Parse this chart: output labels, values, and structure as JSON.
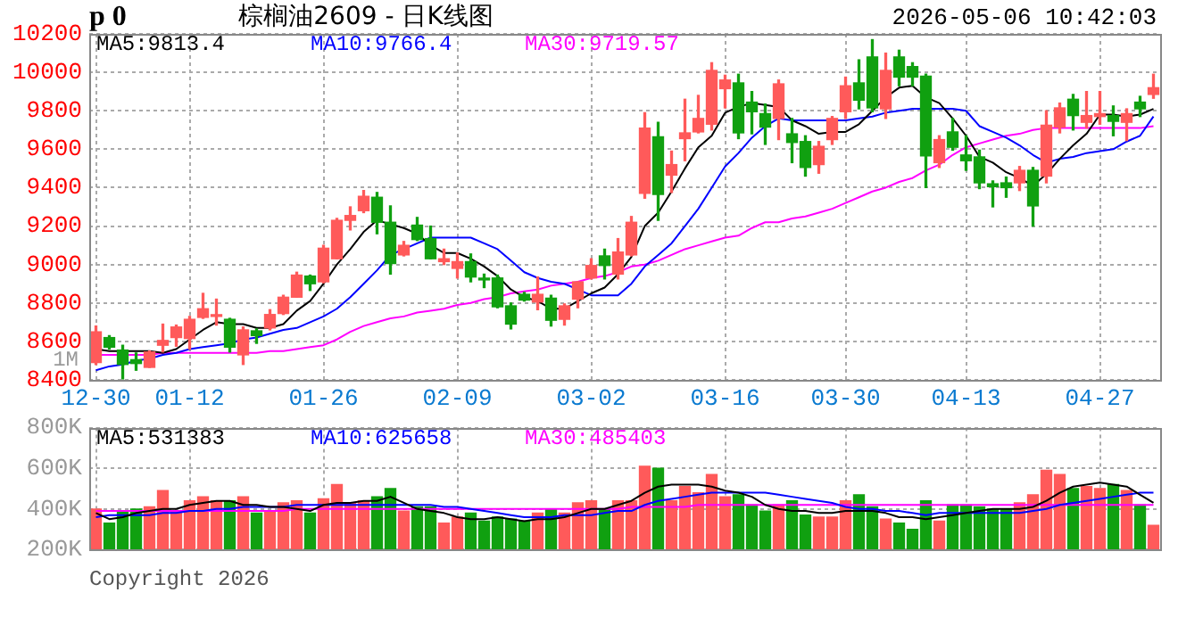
{
  "chart_data": [
    {
      "type": "candlestick",
      "title": "棕榈油2609 - 日K线图",
      "annotations": [
        "p 0",
        "2026-05-06 10:42:03",
        "1M"
      ],
      "categories": [
        "12-30",
        null,
        null,
        null,
        null,
        null,
        null,
        "01-12",
        null,
        null,
        null,
        null,
        null,
        null,
        null,
        null,
        null,
        "01-26",
        null,
        null,
        null,
        null,
        null,
        null,
        null,
        null,
        null,
        "02-09",
        null,
        null,
        null,
        null,
        null,
        null,
        null,
        null,
        null,
        "03-02",
        null,
        null,
        null,
        null,
        null,
        null,
        null,
        null,
        null,
        "03-16",
        null,
        null,
        null,
        null,
        null,
        null,
        null,
        null,
        "03-30",
        null,
        null,
        null,
        null,
        null,
        null,
        null,
        null,
        "04-13",
        null,
        null,
        null,
        null,
        null,
        null,
        null,
        null,
        null,
        "04-27",
        null,
        null,
        null,
        null
      ],
      "ohlc": [
        [
          8490,
          8680,
          8480,
          8650
        ],
        [
          8620,
          8630,
          8560,
          8570
        ],
        [
          8555,
          8580,
          8405,
          8480
        ],
        [
          8505,
          8540,
          8450,
          8485
        ],
        [
          8465,
          8550,
          8465,
          8545
        ],
        [
          8580,
          8690,
          8545,
          8605
        ],
        [
          8620,
          8685,
          8575,
          8675
        ],
        [
          8615,
          8730,
          8560,
          8715
        ],
        [
          8725,
          8850,
          8720,
          8770
        ],
        [
          8730,
          8820,
          8685,
          8735
        ],
        [
          8715,
          8720,
          8545,
          8570
        ],
        [
          8530,
          8675,
          8480,
          8660
        ],
        [
          8655,
          8665,
          8590,
          8630
        ],
        [
          8670,
          8765,
          8660,
          8740
        ],
        [
          8745,
          8840,
          8740,
          8830
        ],
        [
          8830,
          8960,
          8830,
          8945
        ],
        [
          8940,
          8945,
          8865,
          8900
        ],
        [
          8910,
          9100,
          8905,
          9085
        ],
        [
          9030,
          9240,
          9030,
          9230
        ],
        [
          9230,
          9300,
          9180,
          9255
        ],
        [
          9280,
          9385,
          9270,
          9355
        ],
        [
          9350,
          9375,
          9160,
          9220
        ],
        [
          9220,
          9305,
          8950,
          9005
        ],
        [
          9050,
          9120,
          9045,
          9100
        ],
        [
          9205,
          9245,
          9125,
          9130
        ],
        [
          9135,
          9200,
          9030,
          9030
        ],
        [
          9015,
          9080,
          9000,
          9030
        ],
        [
          8980,
          9060,
          8930,
          9015
        ],
        [
          9015,
          9055,
          8910,
          8935
        ],
        [
          8925,
          8950,
          8880,
          8920
        ],
        [
          8930,
          8945,
          8775,
          8780
        ],
        [
          8785,
          8800,
          8665,
          8690
        ],
        [
          8845,
          8855,
          8810,
          8815
        ],
        [
          8805,
          8935,
          8765,
          8845
        ],
        [
          8825,
          8840,
          8680,
          8710
        ],
        [
          8715,
          8795,
          8685,
          8785
        ],
        [
          8820,
          8910,
          8775,
          8910
        ],
        [
          8930,
          9030,
          8925,
          8995
        ],
        [
          9045,
          9080,
          8925,
          8995
        ],
        [
          8950,
          9135,
          8925,
          9065
        ],
        [
          9050,
          9250,
          9045,
          9220
        ],
        [
          9370,
          9790,
          9345,
          9710
        ],
        [
          9665,
          9740,
          9230,
          9365
        ],
        [
          9465,
          9590,
          9375,
          9520
        ],
        [
          9655,
          9860,
          9540,
          9685
        ],
        [
          9690,
          9880,
          9685,
          9760
        ],
        [
          9730,
          10050,
          9700,
          10010
        ],
        [
          9915,
          9985,
          9815,
          9960
        ],
        [
          9945,
          9990,
          9655,
          9685
        ],
        [
          9845,
          9900,
          9680,
          9795
        ],
        [
          9785,
          9835,
          9625,
          9715
        ],
        [
          9760,
          9960,
          9650,
          9940
        ],
        [
          9680,
          9760,
          9530,
          9635
        ],
        [
          9640,
          9670,
          9460,
          9505
        ],
        [
          9520,
          9640,
          9475,
          9615
        ],
        [
          9650,
          9770,
          9625,
          9760
        ],
        [
          9795,
          9975,
          9760,
          9930
        ],
        [
          9945,
          10065,
          9810,
          9855
        ],
        [
          10080,
          10170,
          9795,
          9815
        ],
        [
          9810,
          10100,
          9760,
          10010
        ],
        [
          10080,
          10115,
          9930,
          9975
        ],
        [
          10030,
          10050,
          9930,
          9975
        ],
        [
          9980,
          9990,
          9400,
          9565
        ],
        [
          9530,
          9670,
          9505,
          9650
        ],
        [
          9690,
          9760,
          9595,
          9610
        ],
        [
          9570,
          9670,
          9490,
          9540
        ],
        [
          9560,
          9595,
          9395,
          9425
        ],
        [
          9420,
          9435,
          9300,
          9405
        ],
        [
          9425,
          9455,
          9350,
          9400
        ],
        [
          9425,
          9510,
          9385,
          9490
        ],
        [
          9490,
          9505,
          9200,
          9305
        ],
        [
          9460,
          9800,
          9425,
          9725
        ],
        [
          9715,
          9840,
          9685,
          9815
        ],
        [
          9860,
          9885,
          9700,
          9775
        ],
        [
          9740,
          9900,
          9710,
          9775
        ],
        [
          9770,
          9900,
          9730,
          9785
        ],
        [
          9775,
          9825,
          9670,
          9745
        ],
        [
          9740,
          9810,
          9645,
          9785
        ],
        [
          9845,
          9875,
          9770,
          9810
        ],
        [
          9885,
          9990,
          9865,
          9920
        ]
      ],
      "colors": [
        "#ff5a5a",
        "#10a010",
        "#10a010",
        "#10a010",
        "#ff5a5a",
        "#ff5a5a",
        "#ff5a5a",
        "#ff5a5a",
        "#ff5a5a",
        "#ff5a5a",
        "#10a010",
        "#ff5a5a",
        "#10a010",
        "#ff5a5a",
        "#ff5a5a",
        "#ff5a5a",
        "#10a010",
        "#ff5a5a",
        "#ff5a5a",
        "#ff5a5a",
        "#ff5a5a",
        "#10a010",
        "#10a010",
        "#ff5a5a",
        "#10a010",
        "#10a010",
        "#ff5a5a",
        "#ff5a5a",
        "#10a010",
        "#10a010",
        "#10a010",
        "#10a010",
        "#10a010",
        "#ff5a5a",
        "#10a010",
        "#ff5a5a",
        "#ff5a5a",
        "#ff5a5a",
        "#10a010",
        "#ff5a5a",
        "#ff5a5a",
        "#ff5a5a",
        "#10a010",
        "#ff5a5a",
        "#ff5a5a",
        "#ff5a5a",
        "#ff5a5a",
        "#ff5a5a",
        "#10a010",
        "#10a010",
        "#10a010",
        "#ff5a5a",
        "#10a010",
        "#10a010",
        "#ff5a5a",
        "#ff5a5a",
        "#ff5a5a",
        "#10a010",
        "#10a010",
        "#ff5a5a",
        "#10a010",
        "#10a010",
        "#10a010",
        "#ff5a5a",
        "#10a010",
        "#10a010",
        "#10a010",
        "#10a010",
        "#10a010",
        "#ff5a5a",
        "#10a010",
        "#ff5a5a",
        "#ff5a5a",
        "#10a010",
        "#ff5a5a",
        "#ff5a5a",
        "#10a010",
        "#ff5a5a",
        "#10a010",
        "#ff5a5a"
      ],
      "series": [
        {
          "name": "MA5:9813.4",
          "type": "line",
          "color": "#000000",
          "values": [
            8560,
            8550,
            8550,
            8550,
            8550,
            8540,
            8560,
            8610,
            8660,
            8700,
            8690,
            8690,
            8670,
            8670,
            8690,
            8760,
            8810,
            8900,
            9000,
            9080,
            9170,
            9230,
            9210,
            9190,
            9160,
            9100,
            9060,
            9060,
            9030,
            8990,
            8940,
            8870,
            8830,
            8810,
            8770,
            8770,
            8810,
            8850,
            8880,
            8950,
            9040,
            9200,
            9270,
            9380,
            9500,
            9610,
            9670,
            9790,
            9820,
            9840,
            9830,
            9820,
            9750,
            9720,
            9680,
            9690,
            9690,
            9730,
            9800,
            9870,
            9920,
            9930,
            9870,
            9840,
            9760,
            9670,
            9560,
            9530,
            9480,
            9450,
            9410,
            9470,
            9550,
            9620,
            9680,
            9780,
            9780,
            9770,
            9780,
            9810
          ]
        },
        {
          "name": "MA10:9766.4",
          "type": "line",
          "color": "#0000ff",
          "values": [
            8450,
            8470,
            8480,
            8500,
            8510,
            8530,
            8540,
            8560,
            8570,
            8580,
            8590,
            8610,
            8620,
            8640,
            8660,
            8670,
            8700,
            8730,
            8770,
            8830,
            8900,
            8970,
            9050,
            9080,
            9110,
            9140,
            9140,
            9140,
            9140,
            9110,
            9080,
            9020,
            8960,
            8930,
            8910,
            8900,
            8870,
            8840,
            8840,
            8840,
            8900,
            8990,
            9050,
            9110,
            9200,
            9290,
            9400,
            9510,
            9580,
            9660,
            9720,
            9760,
            9750,
            9750,
            9750,
            9750,
            9750,
            9760,
            9770,
            9790,
            9800,
            9810,
            9810,
            9810,
            9810,
            9800,
            9720,
            9690,
            9660,
            9620,
            9570,
            9530,
            9550,
            9560,
            9580,
            9590,
            9600,
            9640,
            9670,
            9770
          ]
        },
        {
          "name": "MA30:9719.57",
          "type": "line",
          "color": "#ff00ff",
          "values": [
            8530,
            8530,
            8530,
            8530,
            8530,
            8540,
            8540,
            8540,
            8540,
            8540,
            8540,
            8540,
            8540,
            8550,
            8550,
            8560,
            8570,
            8580,
            8610,
            8650,
            8680,
            8700,
            8720,
            8730,
            8750,
            8760,
            8770,
            8790,
            8800,
            8820,
            8830,
            8850,
            8860,
            8870,
            8890,
            8900,
            8910,
            8930,
            8940,
            8960,
            8990,
            9000,
            9020,
            9050,
            9080,
            9100,
            9120,
            9140,
            9150,
            9190,
            9220,
            9220,
            9240,
            9250,
            9270,
            9290,
            9320,
            9350,
            9380,
            9400,
            9430,
            9450,
            9490,
            9520,
            9570,
            9610,
            9630,
            9650,
            9670,
            9680,
            9700,
            9710,
            9710,
            9710,
            9710,
            9710,
            9710,
            9710,
            9710,
            9720
          ]
        }
      ],
      "ylim": [
        8400,
        10200
      ],
      "yticks": [
        8400,
        8600,
        8800,
        9000,
        9200,
        9400,
        9600,
        9800,
        10000,
        10200
      ],
      "grid": true,
      "legend": "top left"
    },
    {
      "type": "bar",
      "annotations": [
        "Copyright 2026"
      ],
      "series": [
        {
          "type": "bar",
          "colors": [
            "#ff5a5a",
            "#10a010",
            "#10a010",
            "#10a010",
            "#ff5a5a",
            "#ff5a5a",
            "#ff5a5a",
            "#ff5a5a",
            "#ff5a5a",
            "#ff5a5a",
            "#10a010",
            "#ff5a5a",
            "#10a010",
            "#ff5a5a",
            "#ff5a5a",
            "#ff5a5a",
            "#10a010",
            "#ff5a5a",
            "#ff5a5a",
            "#ff5a5a",
            "#ff5a5a",
            "#10a010",
            "#10a010",
            "#ff5a5a",
            "#10a010",
            "#10a010",
            "#ff5a5a",
            "#ff5a5a",
            "#10a010",
            "#10a010",
            "#10a010",
            "#10a010",
            "#10a010",
            "#ff5a5a",
            "#10a010",
            "#ff5a5a",
            "#ff5a5a",
            "#ff5a5a",
            "#10a010",
            "#ff5a5a",
            "#ff5a5a",
            "#ff5a5a",
            "#10a010",
            "#ff5a5a",
            "#ff5a5a",
            "#ff5a5a",
            "#ff5a5a",
            "#ff5a5a",
            "#10a010",
            "#10a010",
            "#10a010",
            "#ff5a5a",
            "#10a010",
            "#10a010",
            "#ff5a5a",
            "#ff5a5a",
            "#ff5a5a",
            "#10a010",
            "#10a010",
            "#ff5a5a",
            "#10a010",
            "#10a010",
            "#10a010",
            "#ff5a5a",
            "#10a010",
            "#10a010",
            "#10a010",
            "#10a010",
            "#10a010",
            "#ff5a5a",
            "#ff5a5a",
            "#ff5a5a",
            "#ff5a5a",
            "#10a010",
            "#ff5a5a",
            "#ff5a5a",
            "#10a010",
            "#ff5a5a",
            "#10a010",
            "#ff5a5a"
          ],
          "values": [
            400000,
            330000,
            390000,
            400000,
            410000,
            490000,
            390000,
            440000,
            460000,
            440000,
            440000,
            460000,
            380000,
            390000,
            430000,
            440000,
            380000,
            450000,
            520000,
            430000,
            440000,
            460000,
            500000,
            390000,
            410000,
            410000,
            330000,
            360000,
            380000,
            340000,
            360000,
            350000,
            340000,
            380000,
            400000,
            380000,
            430000,
            440000,
            400000,
            440000,
            440000,
            610000,
            600000,
            440000,
            510000,
            480000,
            570000,
            460000,
            470000,
            420000,
            390000,
            420000,
            440000,
            370000,
            360000,
            360000,
            440000,
            470000,
            410000,
            350000,
            330000,
            300000,
            440000,
            340000,
            420000,
            420000,
            410000,
            400000,
            400000,
            430000,
            470000,
            590000,
            570000,
            500000,
            510000,
            500000,
            520000,
            490000,
            420000,
            320000
          ]
        },
        {
          "name": "MA5:531383",
          "type": "line",
          "color": "#000000",
          "values": [
            380000,
            350000,
            360000,
            380000,
            390000,
            400000,
            400000,
            420000,
            430000,
            440000,
            440000,
            420000,
            420000,
            410000,
            410000,
            400000,
            390000,
            420000,
            430000,
            430000,
            440000,
            440000,
            460000,
            430000,
            400000,
            390000,
            380000,
            360000,
            350000,
            350000,
            360000,
            350000,
            340000,
            350000,
            350000,
            360000,
            380000,
            400000,
            400000,
            420000,
            440000,
            480000,
            510000,
            520000,
            520000,
            520000,
            510000,
            490000,
            480000,
            460000,
            420000,
            400000,
            390000,
            390000,
            380000,
            380000,
            390000,
            390000,
            390000,
            380000,
            360000,
            360000,
            350000,
            360000,
            370000,
            380000,
            390000,
            400000,
            400000,
            400000,
            410000,
            440000,
            480000,
            510000,
            520000,
            530000,
            520000,
            510000,
            470000,
            430000
          ]
        },
        {
          "name": "MA10:625658",
          "type": "line",
          "color": "#0000ff",
          "values": [
            360000,
            370000,
            370000,
            370000,
            370000,
            380000,
            380000,
            390000,
            390000,
            400000,
            400000,
            410000,
            410000,
            410000,
            410000,
            420000,
            420000,
            420000,
            420000,
            420000,
            420000,
            420000,
            420000,
            420000,
            420000,
            420000,
            410000,
            410000,
            400000,
            390000,
            380000,
            370000,
            360000,
            360000,
            360000,
            370000,
            370000,
            370000,
            380000,
            390000,
            390000,
            420000,
            440000,
            450000,
            460000,
            470000,
            480000,
            480000,
            480000,
            480000,
            480000,
            470000,
            460000,
            450000,
            440000,
            430000,
            410000,
            400000,
            400000,
            390000,
            390000,
            380000,
            370000,
            380000,
            380000,
            380000,
            380000,
            380000,
            380000,
            380000,
            390000,
            400000,
            420000,
            430000,
            440000,
            450000,
            460000,
            470000,
            480000,
            480000
          ]
        },
        {
          "name": "MA30:485403",
          "type": "line",
          "color": "#ff00ff",
          "values": [
            390000,
            390000,
            390000,
            390000,
            390000,
            390000,
            390000,
            390000,
            390000,
            390000,
            390000,
            390000,
            390000,
            390000,
            390000,
            400000,
            400000,
            400000,
            400000,
            400000,
            400000,
            400000,
            400000,
            400000,
            400000,
            400000,
            400000,
            400000,
            400000,
            400000,
            400000,
            400000,
            400000,
            400000,
            400000,
            400000,
            400000,
            400000,
            400000,
            400000,
            410000,
            410000,
            410000,
            410000,
            410000,
            420000,
            420000,
            420000,
            420000,
            420000,
            420000,
            420000,
            420000,
            420000,
            420000,
            420000,
            420000,
            420000,
            420000,
            420000,
            420000,
            420000,
            420000,
            420000,
            420000,
            420000,
            420000,
            420000,
            420000,
            420000,
            420000,
            420000,
            420000,
            420000,
            420000,
            420000,
            420000,
            420000,
            420000,
            420000
          ]
        }
      ],
      "ylim": [
        200000,
        800000
      ],
      "yticks": [
        {
          "value": 200000,
          "label": "200K"
        },
        {
          "value": 400000,
          "label": "400K"
        },
        {
          "value": 600000,
          "label": "600K"
        },
        {
          "value": 800000,
          "label": "800K"
        }
      ],
      "tick_labels": "y",
      "grid": true,
      "legend": "top left"
    }
  ]
}
